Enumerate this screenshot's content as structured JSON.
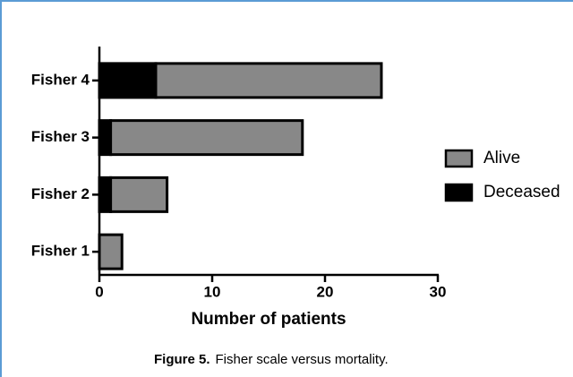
{
  "chart_data": {
    "type": "bar",
    "orientation": "horizontal",
    "stacked": true,
    "categories": [
      "Fisher 4",
      "Fisher 3",
      "Fisher 2",
      "Fisher 1"
    ],
    "series": [
      {
        "name": "Deceased",
        "color": "#000000",
        "values": [
          5,
          1,
          1,
          0
        ]
      },
      {
        "name": "Alive",
        "color": "#888888",
        "values": [
          20,
          17,
          5,
          2
        ]
      }
    ],
    "xlim": [
      0,
      30
    ],
    "xticks": [
      0,
      10,
      20,
      30
    ],
    "xlabel": "Number of patients",
    "caption": {
      "label": "Figure 5.",
      "text": "Fisher scale versus mortality."
    }
  }
}
